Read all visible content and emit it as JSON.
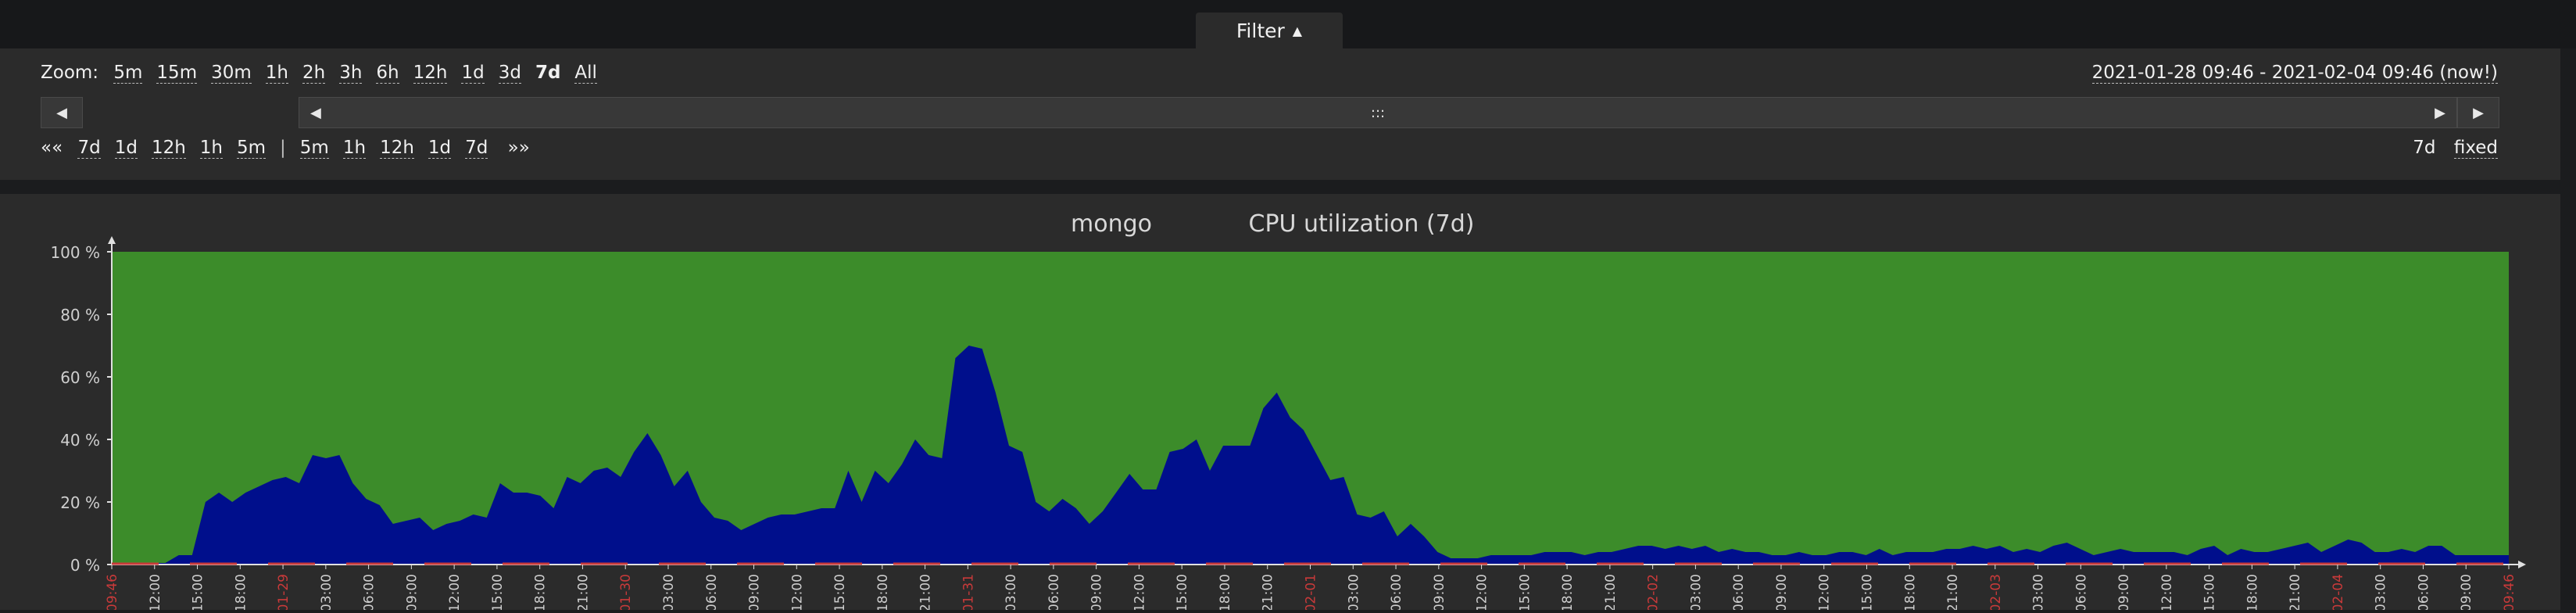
{
  "filter": {
    "label": "Filter",
    "arrow": "▲"
  },
  "zoom": {
    "label": "Zoom:",
    "options": [
      "5m",
      "15m",
      "30m",
      "1h",
      "2h",
      "3h",
      "6h",
      "12h",
      "1d",
      "3d",
      "7d",
      "All"
    ],
    "selected": "7d"
  },
  "period": {
    "range": "2021-01-28 09:46 - 2021-02-04 09:46 (now!)",
    "size": "7d",
    "mode": "fixed"
  },
  "navigation": {
    "back_label": "«« ",
    "back_steps": [
      "7d",
      "1d",
      "12h",
      "1h",
      "5m"
    ],
    "separator": "|",
    "forward_steps": [
      "5m",
      "1h",
      "12h",
      "1d",
      "7d"
    ],
    "forward_label": " »»"
  },
  "scrollbar": {
    "left_icon": "arrow-left-icon",
    "right_icon": "arrow-right-icon",
    "handle_icon": "drag-handle-icon",
    "handle_glyph": ":::"
  },
  "graph": {
    "host": "mongo",
    "item": "CPU utilization (7d)",
    "colors": {
      "background": "#3c8c2a",
      "used": "#000f8c",
      "axis_red": "#c93a3a",
      "axis_text": "#cfcfcf"
    }
  },
  "chart_data": {
    "type": "area",
    "y_ticks": [
      "100 %",
      "80 %",
      "60 %",
      "40 %",
      "20 %",
      "0 %"
    ],
    "ylim": [
      0,
      100
    ],
    "x_ticks": [
      "09:46",
      "12:00",
      "15:00",
      "18:00",
      "01-29",
      "03:00",
      "06:00",
      "09:00",
      "12:00",
      "15:00",
      "18:00",
      "21:00",
      "01-30",
      "03:00",
      "06:00",
      "09:00",
      "12:00",
      "15:00",
      "18:00",
      "21:00",
      "01-31",
      "03:00",
      "06:00",
      "09:00",
      "12:00",
      "15:00",
      "18:00",
      "21:00",
      "02-01",
      "03:00",
      "06:00",
      "09:00",
      "12:00",
      "15:00",
      "18:00",
      "21:00",
      "02-02",
      "03:00",
      "06:00",
      "09:00",
      "12:00",
      "15:00",
      "18:00",
      "21:00",
      "02-03",
      "03:00",
      "06:00",
      "09:00",
      "12:00",
      "15:00",
      "18:00",
      "21:00",
      "02-04",
      "03:00",
      "06:00",
      "09:00",
      "09:46"
    ],
    "red_ticks": [
      "09:46",
      "01-29",
      "01-30",
      "01-31",
      "02-01",
      "02-02",
      "02-03",
      "02-04"
    ],
    "series": [
      {
        "values": [
          0.5,
          0.5,
          0.5,
          0.5,
          0.5,
          3,
          3,
          20,
          23,
          20,
          23,
          25,
          27,
          28,
          26,
          35,
          34,
          35,
          26,
          21,
          19,
          13,
          14,
          15,
          11,
          13,
          14,
          16,
          15,
          26,
          23,
          23,
          22,
          18,
          28,
          26,
          30,
          31,
          28,
          36,
          42,
          35,
          25,
          30,
          20,
          15,
          14,
          11,
          13,
          15,
          16,
          16,
          17,
          18,
          18,
          30,
          20,
          30,
          26,
          32,
          40,
          35,
          34,
          66,
          70,
          69,
          55,
          38,
          36,
          20,
          17,
          21,
          18,
          13,
          17,
          23,
          29,
          24,
          24,
          36,
          37,
          40,
          30,
          38,
          38,
          38,
          50,
          55,
          47,
          43,
          35,
          27,
          28,
          16,
          15,
          17,
          9,
          13,
          9,
          4,
          2,
          2,
          2,
          3,
          3,
          3,
          3,
          4,
          4,
          4,
          3,
          4,
          4,
          5,
          6,
          6,
          5,
          6,
          5,
          6,
          4,
          5,
          4,
          4,
          3,
          3,
          4,
          3,
          3,
          4,
          4,
          3,
          5,
          3,
          4,
          4,
          4,
          5,
          5,
          6,
          5,
          6,
          4,
          5,
          4,
          6,
          7,
          5,
          3,
          4,
          5,
          4,
          4,
          4,
          4,
          3,
          5,
          6,
          3,
          5,
          4,
          4,
          5,
          6,
          7,
          4,
          6,
          8,
          7,
          4,
          4,
          5,
          4,
          6,
          6,
          3,
          3,
          3,
          3,
          3
        ]
      }
    ]
  }
}
